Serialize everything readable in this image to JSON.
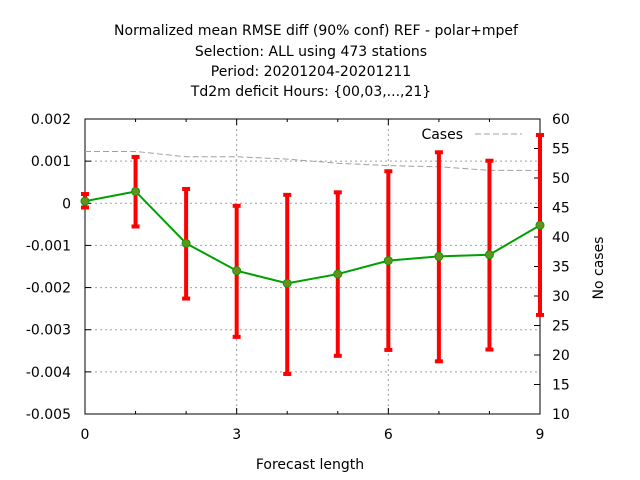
{
  "chart_data": {
    "type": "line",
    "title_lines": [
      "Normalized mean RMSE diff (90% conf) REF - polar+mpef",
      "Selection: ALL using   473 stations",
      "Period: 20201204-20201211",
      "Td2m deficit   Hours: {00,03,...,21}"
    ],
    "xlabel": "Forecast length",
    "ylabel": "",
    "y2label": "No cases",
    "xlim": [
      0,
      9
    ],
    "ylim": [
      -0.005,
      0.002
    ],
    "y2lim": [
      10,
      60
    ],
    "x_ticks": [
      0,
      3,
      6,
      9
    ],
    "x_tick_labels": [
      "0",
      "3",
      "6",
      "9"
    ],
    "y_ticks": [
      0.002,
      0.001,
      0,
      -0.001,
      -0.002,
      -0.003,
      -0.004,
      -0.005
    ],
    "y_tick_labels": [
      "0.002",
      "0.001",
      "0",
      "-0.001",
      "-0.002",
      "-0.003",
      "-0.004",
      "-0.005"
    ],
    "y2_ticks": [
      60,
      55,
      50,
      45,
      40,
      35,
      30,
      25,
      20,
      15,
      10
    ],
    "y2_tick_labels": [
      "60",
      "55",
      "50",
      "45",
      "40",
      "35",
      "30",
      "25",
      "20",
      "15",
      "10"
    ],
    "grid": true,
    "legend": {
      "position": "top-right",
      "entries": [
        "Cases"
      ]
    },
    "series": [
      {
        "name": "",
        "axis": "y",
        "color": "#00a000",
        "marker_color": "#6b8e23",
        "x": [
          0,
          1,
          2,
          3,
          4,
          5,
          6,
          7,
          8,
          9
        ],
        "y": [
          5e-05,
          0.00028,
          -0.00095,
          -0.0016,
          -0.0019,
          -0.00168,
          -0.00136,
          -0.00126,
          -0.00122,
          -0.00052
        ],
        "err_low": [
          -0.0001,
          -0.00055,
          -0.00226,
          -0.00317,
          -0.00405,
          -0.00362,
          -0.00348,
          -0.00375,
          -0.00347,
          -0.00265
        ],
        "err_high": [
          0.00022,
          0.0011,
          0.00034,
          -6e-05,
          0.0002,
          0.00026,
          0.00076,
          0.00121,
          0.00101,
          0.00162
        ],
        "err_color": "#ff0000"
      },
      {
        "name": "Cases",
        "axis": "y2",
        "color": "#a0a0a0",
        "x": [
          0,
          1,
          2,
          3,
          4,
          5,
          6,
          7,
          8,
          9
        ],
        "y": [
          54.5,
          54.5,
          53.6,
          53.6,
          53.2,
          52.5,
          52.1,
          51.9,
          51.3,
          51.3
        ]
      }
    ]
  }
}
